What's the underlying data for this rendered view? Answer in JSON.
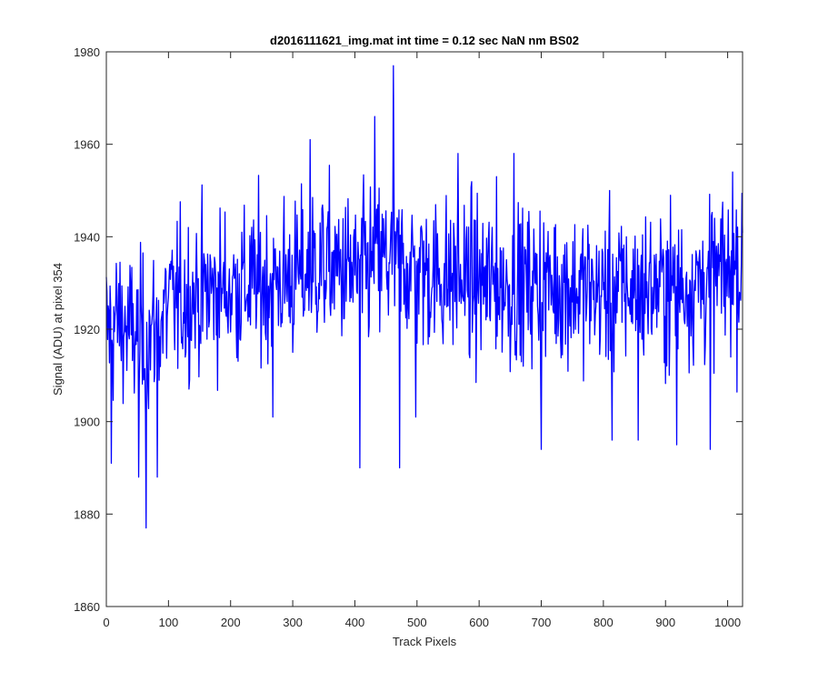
{
  "colors": {
    "background": "#ffffff",
    "axes": "#262626",
    "series": "#0000ff"
  },
  "chart_data": {
    "type": "line",
    "title": "d2016111621_img.mat int time = 0.12 sec  NaN nm BS02",
    "xlabel": "Track Pixels",
    "ylabel": "Signal (ADU) at pixel 354",
    "xlim": [
      0,
      1024
    ],
    "ylim": [
      1860,
      1980
    ],
    "xticks": [
      0,
      100,
      200,
      300,
      400,
      500,
      600,
      700,
      800,
      900,
      1000
    ],
    "yticks": [
      1860,
      1880,
      1900,
      1920,
      1940,
      1960,
      1980
    ],
    "grid": false,
    "series": [
      {
        "color": "#0000ff",
        "baseline_x": [
          0,
          20,
          40,
          60,
          80,
          100,
          130,
          160,
          200,
          250,
          300,
          350,
          400,
          450,
          500,
          550,
          600,
          650,
          700,
          750,
          800,
          850,
          900,
          950,
          1000,
          1024
        ],
        "baseline_y": [
          1920,
          1922,
          1919,
          1918,
          1920,
          1925,
          1927,
          1928,
          1929,
          1930,
          1931,
          1934,
          1932,
          1935,
          1933,
          1931,
          1930,
          1929,
          1930,
          1929,
          1928,
          1929,
          1929,
          1930,
          1932,
          1934
        ],
        "noise_sd": 10,
        "extremes": [
          {
            "x": 462,
            "y": 1977
          },
          {
            "x": 328,
            "y": 1961
          },
          {
            "x": 432,
            "y": 1966
          },
          {
            "x": 64,
            "y": 1877
          },
          {
            "x": 8,
            "y": 1891
          },
          {
            "x": 52,
            "y": 1888
          },
          {
            "x": 82,
            "y": 1888
          },
          {
            "x": 408,
            "y": 1890
          },
          {
            "x": 472,
            "y": 1890
          },
          {
            "x": 498,
            "y": 1901
          },
          {
            "x": 700,
            "y": 1894
          },
          {
            "x": 814,
            "y": 1896
          },
          {
            "x": 856,
            "y": 1896
          },
          {
            "x": 918,
            "y": 1895
          },
          {
            "x": 972,
            "y": 1894
          },
          {
            "x": 268,
            "y": 1901
          },
          {
            "x": 1008,
            "y": 1954
          },
          {
            "x": 656,
            "y": 1958
          },
          {
            "x": 628,
            "y": 1953
          },
          {
            "x": 566,
            "y": 1958
          }
        ]
      }
    ]
  }
}
